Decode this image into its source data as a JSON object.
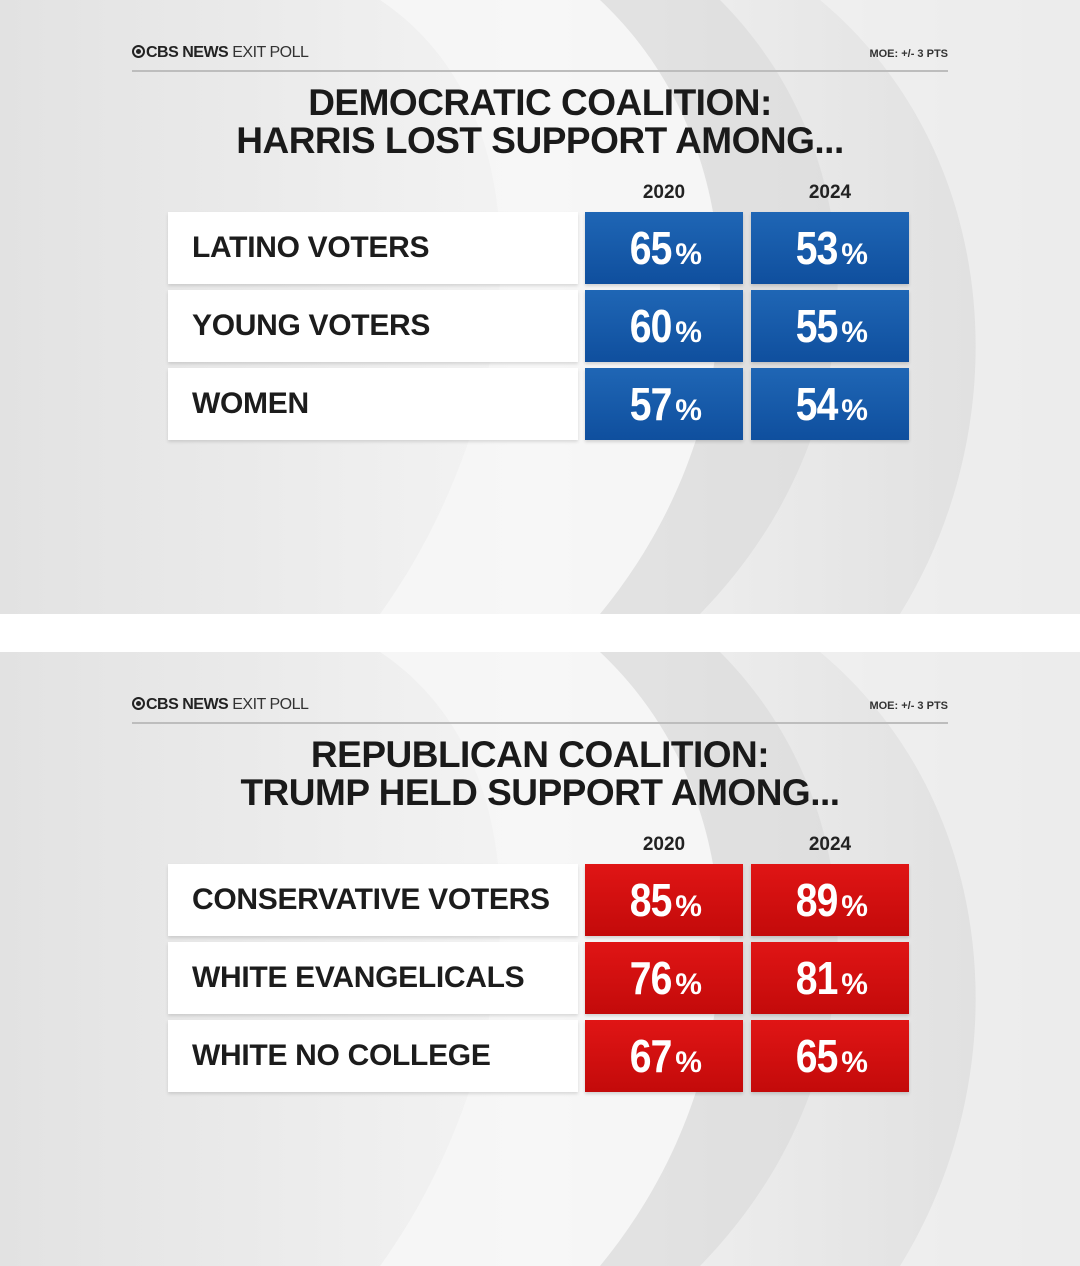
{
  "brand": {
    "bold": "CBS NEWS",
    "light": "EXIT POLL",
    "logo_icon": "cbs-eye-icon"
  },
  "moe": "MOE: +/- 3 PTS",
  "colors": {
    "democrat": "#1459a8",
    "republican": "#d20f0f",
    "background": "#e9e9e9"
  },
  "chart_data": [
    {
      "type": "table",
      "title": [
        "DEMOCRATIC COALITION:",
        "HARRIS LOST SUPPORT AMONG..."
      ],
      "columns": [
        "2020",
        "2024"
      ],
      "rows": [
        {
          "label": "LATINO VOTERS",
          "values": [
            65,
            53
          ]
        },
        {
          "label": "YOUNG VOTERS",
          "values": [
            60,
            55
          ]
        },
        {
          "label": "WOMEN",
          "values": [
            57,
            54
          ]
        }
      ],
      "unit": "%",
      "color": "#1459a8"
    },
    {
      "type": "table",
      "title": [
        "REPUBLICAN COALITION:",
        "TRUMP HELD SUPPORT AMONG..."
      ],
      "columns": [
        "2020",
        "2024"
      ],
      "rows": [
        {
          "label": "CONSERVATIVE VOTERS",
          "values": [
            85,
            89
          ]
        },
        {
          "label": "WHITE EVANGELICALS",
          "values": [
            76,
            81
          ]
        },
        {
          "label": "WHITE NO COLLEGE",
          "values": [
            67,
            65
          ]
        }
      ],
      "unit": "%",
      "color": "#d20f0f"
    }
  ]
}
